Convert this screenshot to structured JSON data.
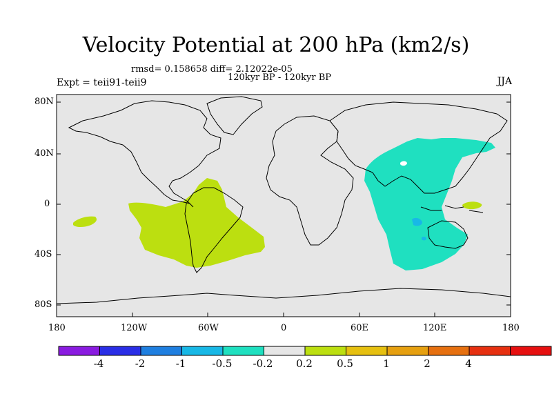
{
  "title": "Velocity Potential at 200 hPa (km2/s)",
  "stats_text": "rmsd= 0.158658 diff= 2.12022e-05",
  "period_text": "120kyr BP - 120kyr BP",
  "left_label": "Expt = teii91-teii9",
  "right_label": "JJA",
  "map": {
    "projection": "cylindrical equidistant",
    "lon_range": [
      -180,
      180
    ],
    "lat_range": [
      -90,
      90
    ],
    "ocean_color": "#e6e6e6",
    "coastline_color": "#000000",
    "y_ticks": [
      "80N",
      "40N",
      "0",
      "40S",
      "80S"
    ],
    "x_ticks": [
      "180",
      "120W",
      "60W",
      "0",
      "60E",
      "120E",
      "180"
    ]
  },
  "colorbar": {
    "colors": [
      "#8a1be0",
      "#2a2ee6",
      "#1f7fe0",
      "#18b8e6",
      "#1fe0c0",
      "#e6e6e6",
      "#bcdf10",
      "#e6c010",
      "#e6a010",
      "#e67010",
      "#e63010",
      "#e61010"
    ],
    "labels": [
      "-4",
      "-2",
      "-1",
      "-0.5",
      "-0.2",
      "0.2",
      "0.5",
      "1",
      "2",
      "4"
    ]
  },
  "anomalies": [
    {
      "name": "south-america-positive",
      "level": "0.2 to 0.5",
      "color": "#bcdf10"
    },
    {
      "name": "pacific-positive",
      "level": "0.2 to 0.5",
      "color": "#bcdf10"
    },
    {
      "name": "west-pacific-positive",
      "level": "0.2 to 0.5",
      "color": "#bcdf10"
    },
    {
      "name": "asia-indian-ocean-negative",
      "level": "-0.5 to -0.2",
      "color": "#1fe0c0"
    },
    {
      "name": "indian-ocean-small-negative",
      "level": "-1 to -0.5",
      "color": "#18b8e6"
    }
  ]
}
